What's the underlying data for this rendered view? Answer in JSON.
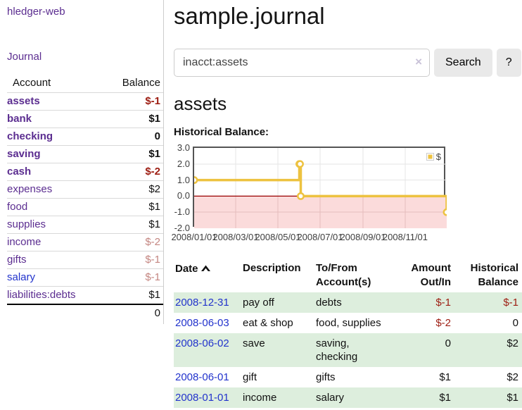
{
  "colors": {
    "link_visited_purple": "#5b2d90",
    "link_blue": "#2233cc",
    "negative_strong": "#9d1d12",
    "negative_soft": "#c48681",
    "row_stripe_green": "#ddeedd",
    "chart_line_gold": "#edc240",
    "chart_negative_zone_pink": "#fbdbdb",
    "chart_zero_line_red": "#990000",
    "chart_border_gray": "#545454",
    "button_gray": "#e9e9e9"
  },
  "sidebar": {
    "brand": "hledger-web",
    "journal_link": "Journal",
    "accounts": {
      "header_account": "Account",
      "header_balance": "Balance",
      "rows": [
        {
          "name": "assets",
          "balance": "$-1"
        },
        {
          "name": "bank",
          "balance": "$1"
        },
        {
          "name": "checking",
          "balance": "0"
        },
        {
          "name": "saving",
          "balance": "$1"
        },
        {
          "name": "cash",
          "balance": "$-2"
        },
        {
          "name": "expenses",
          "balance": "$2"
        },
        {
          "name": "food",
          "balance": "$1"
        },
        {
          "name": "supplies",
          "balance": "$1"
        },
        {
          "name": "income",
          "balance": "$-2"
        },
        {
          "name": "gifts",
          "balance": "$-1"
        },
        {
          "name": "salary",
          "balance": "$-1"
        },
        {
          "name": "liabilities:debts",
          "balance": "$1"
        }
      ],
      "total": "0"
    }
  },
  "main": {
    "title": "sample.journal",
    "search": {
      "query": "inacct:assets",
      "clear": "×",
      "search_button": "Search",
      "help_button": "?"
    },
    "account_heading": "assets",
    "section_label": "Historical Balance:",
    "register": {
      "headers": {
        "date": "Date",
        "description": "Description",
        "accounts": "To/From Account(s)",
        "amount": "Amount Out/In",
        "balance": "Historical Balance"
      },
      "rows": [
        {
          "date": "2008-12-31",
          "description": "pay off",
          "accounts": "debts",
          "amount": "$-1",
          "balance": "$-1"
        },
        {
          "date": "2008-06-03",
          "description": "eat & shop",
          "accounts": "food, supplies",
          "amount": "$-2",
          "balance": "0"
        },
        {
          "date": "2008-06-02",
          "description": "save",
          "accounts": "saving, checking",
          "amount": "0",
          "balance": "$2"
        },
        {
          "date": "2008-06-01",
          "description": "gift",
          "accounts": "gifts",
          "amount": "$1",
          "balance": "$2"
        },
        {
          "date": "2008-01-01",
          "description": "income",
          "accounts": "salary",
          "amount": "$1",
          "balance": "$1"
        }
      ]
    }
  },
  "chart_data": {
    "type": "line",
    "title": "Historical Balance:",
    "legend": "$",
    "step": true,
    "ylim": [
      -2,
      3
    ],
    "xlim": [
      "2008-01-01",
      "2008-12-31"
    ],
    "grid": true,
    "legend_position": "top-right",
    "series": [
      {
        "name": "$",
        "points": [
          {
            "date": "2008-01-01",
            "value": 1
          },
          {
            "date": "2008-06-01",
            "value": 2
          },
          {
            "date": "2008-06-02",
            "value": 2
          },
          {
            "date": "2008-06-03",
            "value": 0
          },
          {
            "date": "2008-12-31",
            "value": -1
          }
        ]
      }
    ],
    "y_ticks": [
      {
        "label": "3.0",
        "value": 3
      },
      {
        "label": "2.0",
        "value": 2
      },
      {
        "label": "1.0",
        "value": 1
      },
      {
        "label": "0.0",
        "value": 0
      },
      {
        "label": "-1.0",
        "value": -1
      },
      {
        "label": "-2.0",
        "value": -2
      }
    ],
    "x_ticks": [
      {
        "label": "2008/01/01",
        "date": "2008-01-01"
      },
      {
        "label": "2008/03/01",
        "date": "2008-03-01"
      },
      {
        "label": "2008/05/01",
        "date": "2008-05-01"
      },
      {
        "label": "2008/07/01",
        "date": "2008-07-01"
      },
      {
        "label": "2008/09/01",
        "date": "2008-09-01"
      },
      {
        "label": "2008/11/01",
        "date": "2008-11-01"
      }
    ]
  }
}
